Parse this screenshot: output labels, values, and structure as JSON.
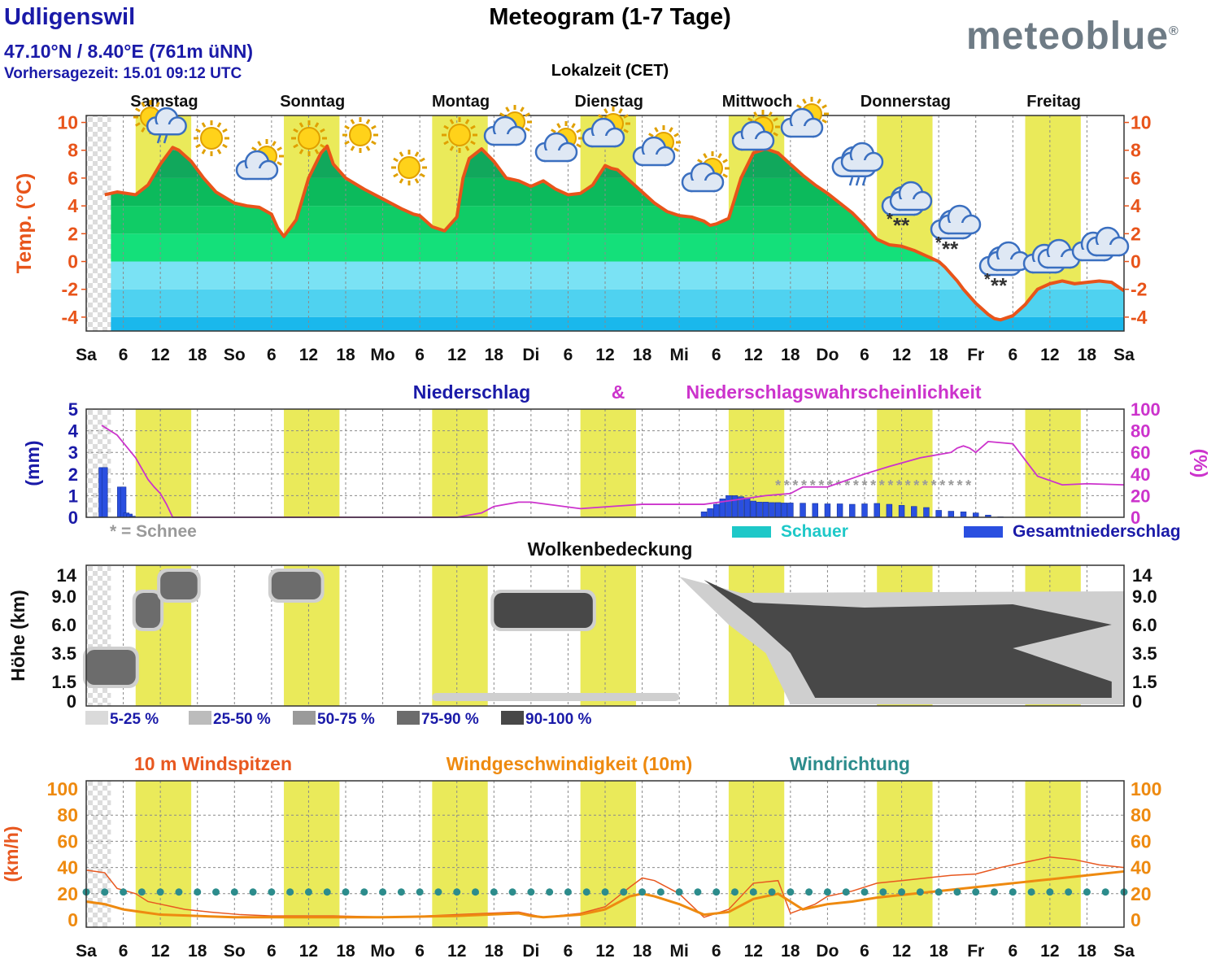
{
  "header": {
    "location": "Udligenswil",
    "coordinates": "47.10°N / 8.40°E (761m üNN)",
    "forecast_time": "Vorhersagezeit: 15.01 09:12 UTC",
    "title": "Meteogram (1-7 Tage)",
    "timezone": "Lokalzeit (CET)",
    "logo": "meteoblue",
    "logo_mark": "®"
  },
  "days": [
    "Samstag",
    "Sonntag",
    "Montag",
    "Dienstag",
    "Mittwoch",
    "Donnerstag",
    "Freitag"
  ],
  "time_axis_labels": [
    "Sa",
    "6",
    "12",
    "18",
    "So",
    "6",
    "12",
    "18",
    "Mo",
    "6",
    "12",
    "18",
    "Di",
    "6",
    "12",
    "18",
    "Mi",
    "6",
    "12",
    "18",
    "Do",
    "6",
    "12",
    "18",
    "Fr",
    "6",
    "12",
    "18",
    "Sa"
  ],
  "colors": {
    "temperature_line": "#e8541a",
    "daylight": "#eaea5a",
    "precip_total": "#2a4fe0",
    "precip_showers": "#1ec8c8",
    "probability": "#cc33cc",
    "wind_gusts": "#e85820",
    "wind_speed": "#ee8a10",
    "wind_direction": "#2c8c8c",
    "title_blue": "#1a1aa8"
  },
  "chart_data": [
    {
      "type": "area",
      "panel": "temperature",
      "ylabel": "Temp. (°C)",
      "ylim": [
        -5,
        10.5
      ],
      "yticks": [
        -4,
        -2,
        0,
        2,
        4,
        6,
        8,
        10
      ],
      "x_unit": "hours",
      "x_range": [
        0,
        168
      ],
      "grid": true,
      "series": [
        {
          "x": [
            3,
            5,
            8,
            10,
            12,
            14,
            15,
            16,
            17,
            19,
            21,
            24,
            26,
            28,
            30,
            31,
            32,
            34,
            36,
            38,
            39,
            40,
            42,
            45,
            48,
            51,
            53,
            54,
            56,
            58,
            60,
            61,
            62,
            64,
            66,
            68,
            70,
            72,
            74,
            76,
            77,
            78,
            80,
            82,
            84,
            85,
            86,
            88,
            90,
            92,
            94,
            96,
            98,
            100,
            101,
            102,
            104,
            106,
            108,
            110,
            112,
            114,
            116,
            118,
            120,
            122,
            124,
            126,
            128,
            130,
            132,
            134,
            136,
            138,
            139,
            140,
            141,
            142,
            143,
            144,
            145,
            146,
            147,
            148,
            150,
            152,
            154,
            156,
            158,
            160,
            162,
            164,
            166,
            168
          ],
          "values": [
            4.8,
            5.0,
            4.8,
            5.5,
            7,
            8.2,
            8.0,
            7.6,
            7.2,
            6,
            5,
            4.2,
            4.0,
            3.9,
            3.4,
            2.4,
            1.8,
            3,
            6,
            7.8,
            8.3,
            7,
            6,
            5.2,
            4.5,
            3.8,
            3.4,
            3.3,
            2.5,
            2.2,
            3.2,
            6,
            7.4,
            8.1,
            7.2,
            6,
            5.8,
            5.4,
            5.8,
            5.2,
            5.0,
            4.8,
            4.9,
            5.5,
            6.9,
            6.7,
            6.6,
            5.8,
            5.0,
            4.2,
            3.6,
            3.3,
            3.2,
            2.9,
            2.6,
            2.7,
            3.1,
            6,
            7.8,
            8.1,
            7.8,
            7.0,
            6.2,
            5.5,
            4.9,
            4.2,
            3.5,
            2.6,
            1.6,
            1.2,
            1.1,
            0.8,
            0.4,
            0,
            -0.4,
            -0.9,
            -1.4,
            -2.0,
            -2.5,
            -3.0,
            -3.4,
            -3.8,
            -4.1,
            -4.2,
            -3.9,
            -3.1,
            -2.0,
            -1.6,
            -1.4,
            -1.6,
            -1.5,
            -1.4,
            -1.5,
            -2.1
          ]
        }
      ]
    },
    {
      "type": "bar",
      "panel": "precipitation",
      "title": "Niederschlag",
      "title_amp": "&",
      "title2": "Niederschlagswahrscheinlichkeit",
      "ylabel": "(mm)",
      "ylabel_right": "(%)",
      "ylim": [
        0,
        5
      ],
      "yticks": [
        0,
        1,
        2,
        3,
        4,
        5
      ],
      "ylim_right": [
        0,
        100
      ],
      "yticks_right": [
        0,
        20,
        40,
        60,
        80,
        100
      ],
      "snow_note": "* = Schnee",
      "legend": [
        "Schauer",
        "Gesamtniederschlag"
      ],
      "series": [
        {
          "name": "Gesamtniederschlag",
          "x": [
            2.5,
            3.0,
            5.5,
            6.0,
            6.5,
            7,
            7.5,
            100,
            101,
            102,
            103,
            104,
            105,
            106,
            107,
            108,
            109,
            110,
            111,
            112,
            113,
            114,
            116,
            118,
            120,
            122,
            124,
            126,
            128,
            130,
            132,
            134,
            136,
            138,
            140,
            142,
            144,
            146,
            148
          ],
          "values": [
            2.3,
            2.3,
            1.4,
            1.4,
            0.2,
            0.15,
            0.05,
            0.25,
            0.4,
            0.6,
            0.85,
            1.0,
            1.0,
            0.95,
            0.9,
            0.75,
            0.7,
            0.7,
            0.68,
            0.68,
            0.66,
            0.66,
            0.65,
            0.64,
            0.62,
            0.62,
            0.6,
            0.62,
            0.64,
            0.6,
            0.55,
            0.5,
            0.45,
            0.32,
            0.28,
            0.25,
            0.2,
            0.1,
            0.02
          ]
        },
        {
          "name": "Niederschlagswahrscheinlichkeit",
          "unit": "%",
          "x": [
            2.5,
            5,
            8,
            10,
            11,
            12,
            13,
            14,
            20,
            30,
            40,
            50,
            60,
            64,
            66,
            68,
            70,
            72,
            80,
            90,
            100,
            105,
            110,
            114,
            116,
            118,
            120,
            126,
            130,
            135,
            140,
            141,
            142,
            143,
            144,
            145,
            146,
            150,
            154,
            158,
            162,
            168
          ],
          "values": [
            85,
            76,
            55,
            35,
            28,
            22,
            12,
            0,
            0,
            0,
            0,
            0,
            0,
            4,
            10,
            12,
            14,
            14,
            8,
            12,
            12,
            16,
            20,
            22,
            28,
            28,
            28,
            40,
            47,
            55,
            60,
            64,
            66,
            64,
            60,
            65,
            70,
            68,
            38,
            30,
            31,
            30
          ]
        },
        {
          "name": "Schnee",
          "note": "*",
          "x_range": [
            112,
            144
          ]
        }
      ]
    },
    {
      "type": "heatmap",
      "panel": "cloud_cover",
      "title": "Wolkenbedeckung",
      "ylabel": "Höhe (km)",
      "yticks": [
        "0",
        "1.5",
        "3.5",
        "6.0",
        "9.0",
        "14"
      ],
      "legend": [
        "5-25 %",
        "25-50 %",
        "50-75 %",
        "75-90 %",
        "90-100 %"
      ],
      "cloud_patches": [
        {
          "x": [
            0,
            8
          ],
          "levels": [
            "1.5",
            "3.5"
          ],
          "cover": "75-90 %"
        },
        {
          "x": [
            8,
            12
          ],
          "levels": [
            "6.0",
            "9.0"
          ],
          "cover": "75-90 %"
        },
        {
          "x": [
            12,
            18
          ],
          "levels": [
            "9.0",
            "14"
          ],
          "cover": "75-90 %"
        },
        {
          "x": [
            30,
            38
          ],
          "levels": [
            "9.0",
            "14"
          ],
          "cover": "75-90 %"
        },
        {
          "x": [
            66,
            82
          ],
          "levels": [
            "6.0",
            "9.0"
          ],
          "cover": "90-100 %"
        },
        {
          "x": [
            96,
            168
          ],
          "levels": [
            "0",
            "14"
          ],
          "cover": "90-100 %"
        }
      ]
    },
    {
      "type": "line",
      "panel": "wind",
      "title_gusts": "10 m Windspitzen",
      "title_speed": "Windgeschwindigkeit (10m)",
      "title_dir": "Windrichtung",
      "ylabel": "(km/h)",
      "ylim": [
        0,
        100
      ],
      "yticks": [
        0,
        20,
        40,
        60,
        80,
        100
      ],
      "series": [
        {
          "name": "10 m Windspitzen",
          "x": [
            0,
            3,
            5,
            8,
            10,
            12,
            14,
            16,
            20,
            25,
            30,
            40,
            50,
            60,
            70,
            72,
            74,
            80,
            84,
            88,
            90,
            92,
            96,
            100,
            104,
            108,
            112,
            114,
            118,
            120,
            124,
            128,
            132,
            136,
            140,
            144,
            148,
            152,
            156,
            160,
            164,
            168
          ],
          "values": [
            38,
            36,
            24,
            20,
            14,
            12,
            10,
            8,
            6,
            4,
            3,
            3,
            2,
            4,
            6,
            4,
            2,
            5,
            10,
            25,
            32,
            30,
            20,
            2,
            8,
            28,
            30,
            5,
            12,
            18,
            22,
            28,
            30,
            32,
            34,
            35,
            40,
            44,
            48,
            46,
            42,
            40
          ]
        },
        {
          "name": "Windgeschwindigkeit (10m)",
          "x": [
            0,
            3,
            6,
            9,
            12,
            18,
            24,
            36,
            48,
            60,
            70,
            72,
            74,
            80,
            84,
            88,
            90,
            92,
            96,
            100,
            104,
            108,
            112,
            116,
            120,
            124,
            128,
            132,
            136,
            140,
            144,
            148,
            152,
            156,
            160,
            164,
            168
          ],
          "values": [
            14,
            12,
            8,
            6,
            4,
            3,
            2,
            2,
            2,
            3,
            5,
            3,
            2,
            4,
            8,
            18,
            20,
            18,
            12,
            4,
            6,
            16,
            20,
            8,
            12,
            14,
            17,
            19,
            21,
            23,
            25,
            27,
            29,
            31,
            33,
            35,
            37
          ]
        },
        {
          "name": "Windrichtung",
          "x": [
            0,
            3,
            6,
            9,
            12,
            15,
            18,
            21,
            24,
            27,
            30,
            33,
            36,
            39,
            42,
            45,
            48,
            51,
            54,
            57,
            60,
            63,
            66,
            69,
            72,
            75,
            78,
            81,
            84,
            87,
            90,
            93,
            96,
            99,
            102,
            105,
            108,
            111,
            114,
            117,
            120,
            123,
            126,
            129,
            132,
            135,
            138,
            141,
            144,
            147,
            150,
            153,
            156,
            159,
            162,
            165,
            168
          ],
          "values": [
            25,
            25,
            25,
            25,
            25,
            25,
            25,
            25,
            25,
            25,
            25,
            25,
            25,
            25,
            25,
            25,
            25,
            25,
            25,
            25,
            25,
            25,
            25,
            25,
            25,
            25,
            25,
            25,
            25,
            25,
            25,
            25,
            25,
            25,
            25,
            25,
            25,
            25,
            25,
            25,
            25,
            25,
            25,
            25,
            25,
            25,
            25,
            25,
            25,
            25,
            25,
            25,
            25,
            25,
            25,
            25,
            25
          ]
        }
      ]
    }
  ]
}
